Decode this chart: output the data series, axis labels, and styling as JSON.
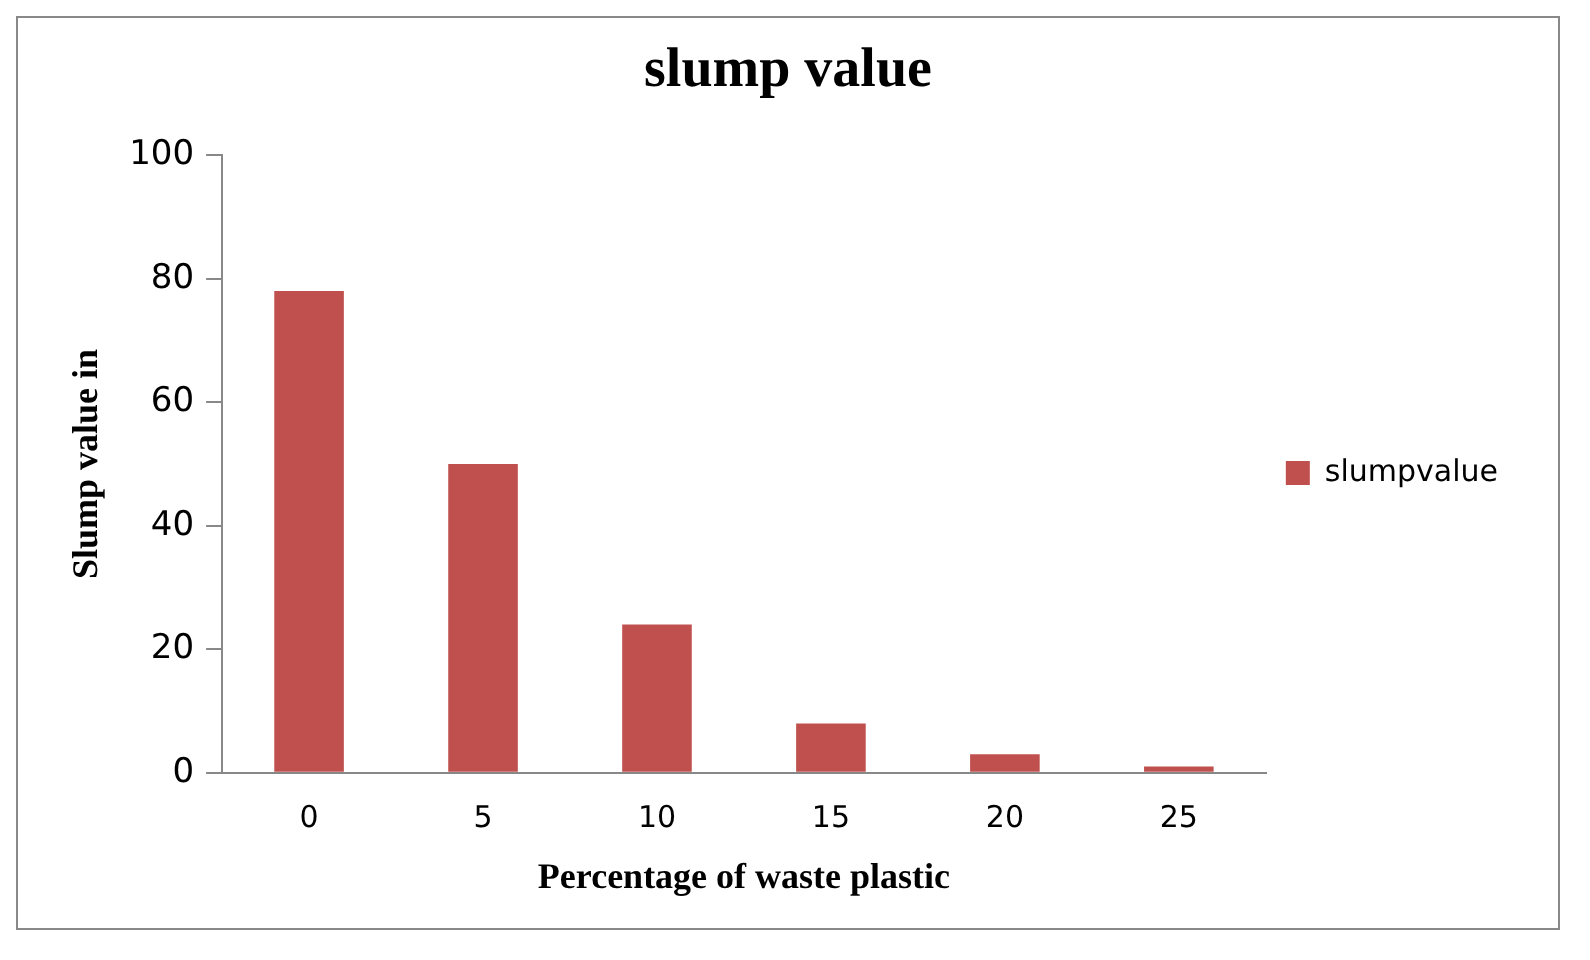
{
  "chart_data": {
    "type": "bar",
    "title": "slump value",
    "xlabel": "Percentage of waste plastic",
    "ylabel": "Slump value in",
    "categories": [
      "0",
      "5",
      "10",
      "15",
      "20",
      "25"
    ],
    "series": [
      {
        "name": "slumpvalue",
        "color": "#c0504d",
        "values": [
          78,
          50,
          24,
          8,
          3,
          1
        ]
      }
    ],
    "ylim": [
      0,
      100
    ],
    "yticks": [
      0,
      20,
      40,
      60,
      80,
      100
    ],
    "grid": false,
    "legend": "right"
  }
}
